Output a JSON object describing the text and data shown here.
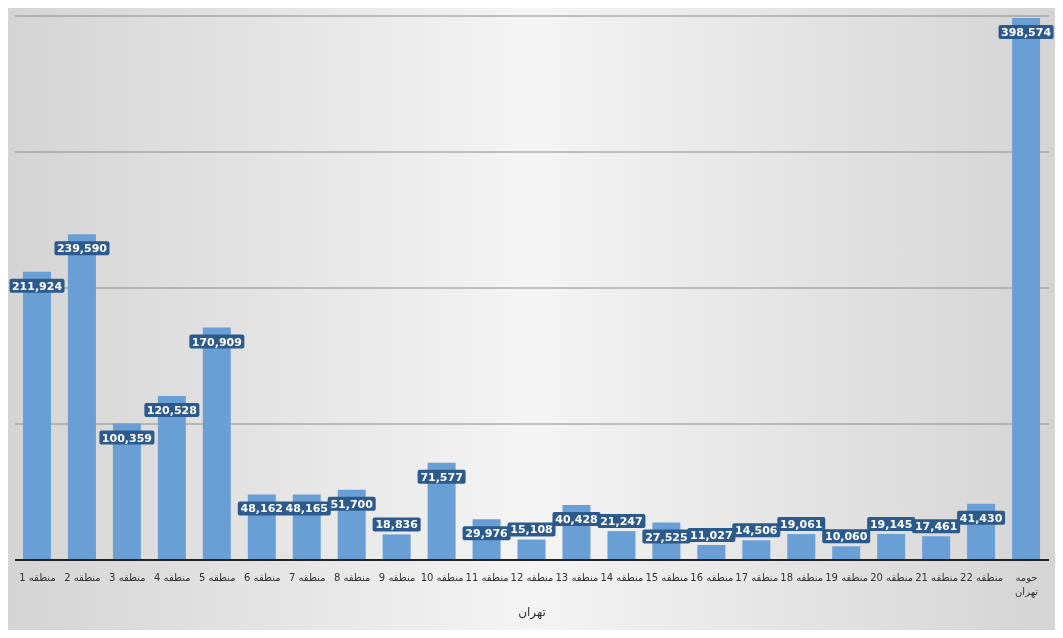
{
  "chart_data": {
    "type": "bar",
    "categories": [
      "منطقه 1",
      "منطقه 2",
      "منطقه 3",
      "منطقه 4",
      "منطقه 5",
      "منطقه 6",
      "منطقه 7",
      "منطقه 8",
      "منطقه 9",
      "منطقه 10",
      "منطقه 11",
      "منطقه 12",
      "منطقه 13",
      "منطقه 14",
      "منطقه 15",
      "منطقه 16",
      "منطقه 17",
      "منطقه 18",
      "منطقه 19",
      "منطقه 20",
      "منطقه 21",
      "منطقه 22",
      "حومه تهران"
    ],
    "values": [
      211924,
      239590,
      100359,
      120528,
      170909,
      48162,
      48165,
      51700,
      18836,
      71577,
      29976,
      15108,
      40428,
      21247,
      27525,
      11027,
      14506,
      19061,
      10060,
      19145,
      17461,
      41430,
      398574
    ],
    "value_labels": [
      "211,924",
      "239,590",
      "100,359",
      "120,528",
      "170,909",
      "48,162",
      "48,165",
      "51,700",
      "18,836",
      "71,577",
      "29,976",
      "15,108",
      "40,428",
      "21,247",
      "27,525",
      "11,027",
      "14,506",
      "19,061",
      "10,060",
      "19,145",
      "17,461",
      "41,430",
      "398,574"
    ],
    "color": "#6a9fd6",
    "xlabel": "تهران",
    "grid": "y",
    "tick_labels": "x"
  }
}
